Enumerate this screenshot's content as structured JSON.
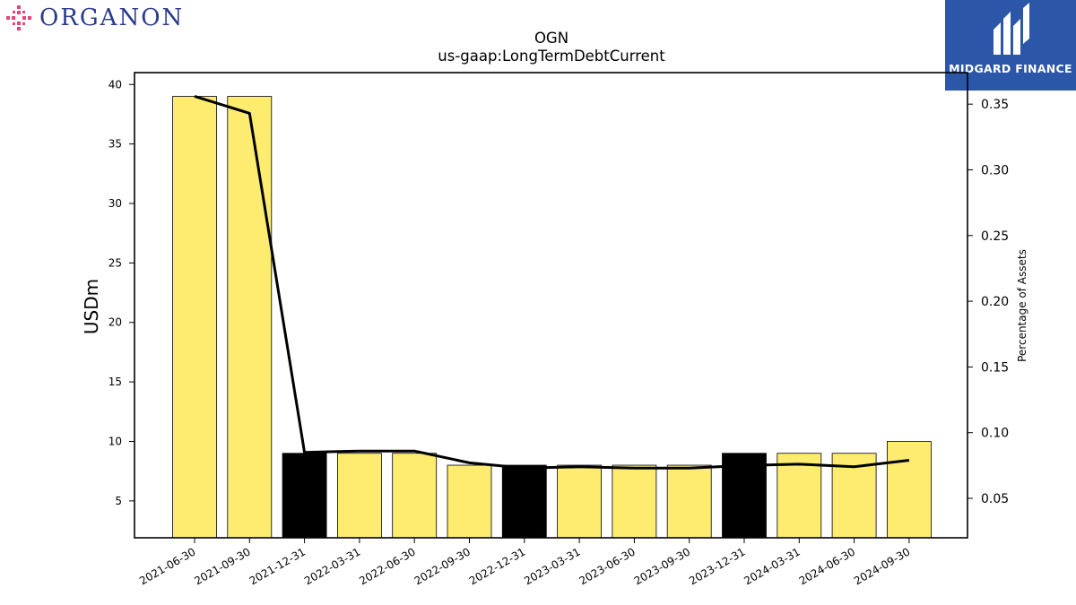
{
  "logos": {
    "left_text": "ORGANON",
    "right_text": "MIDGARD FINANCE"
  },
  "chart_data": {
    "type": "bar",
    "title": "OGN",
    "subtitle": "us-gaap:LongTermDebtCurrent",
    "ylabel": "USDm",
    "y2label": "Percentage of Assets",
    "categories": [
      "2021-06-30",
      "2021-09-30",
      "2021-12-31",
      "2022-03-31",
      "2022-06-30",
      "2022-09-30",
      "2022-12-31",
      "2023-03-31",
      "2023-06-30",
      "2023-09-30",
      "2023-12-31",
      "2024-03-31",
      "2024-06-30",
      "2024-09-30"
    ],
    "values": [
      39,
      39,
      9,
      9,
      9,
      8,
      8,
      8,
      8,
      8,
      9,
      9,
      9,
      10
    ],
    "bar_colors": [
      "#fdec6f",
      "#fdec6f",
      "#000000",
      "#fdec6f",
      "#fdec6f",
      "#fdec6f",
      "#000000",
      "#fdec6f",
      "#fdec6f",
      "#fdec6f",
      "#000000",
      "#fdec6f",
      "#fdec6f",
      "#fdec6f"
    ],
    "line_values": [
      0.356,
      0.343,
      0.085,
      0.086,
      0.086,
      0.077,
      0.073,
      0.074,
      0.073,
      0.073,
      0.075,
      0.076,
      0.074,
      0.079
    ],
    "line_color": "#000000",
    "ylim": [
      1.9,
      41
    ],
    "yticks": [
      5,
      10,
      15,
      20,
      25,
      30,
      35,
      40
    ],
    "y2lim": [
      0.02,
      0.374
    ],
    "y2ticks": [
      0.05,
      0.1,
      0.15,
      0.2,
      0.25,
      0.3,
      0.35
    ],
    "y2ticklabels": [
      "0.05",
      "0.10",
      "0.15",
      "0.20",
      "0.25",
      "0.30",
      "0.35"
    ]
  }
}
